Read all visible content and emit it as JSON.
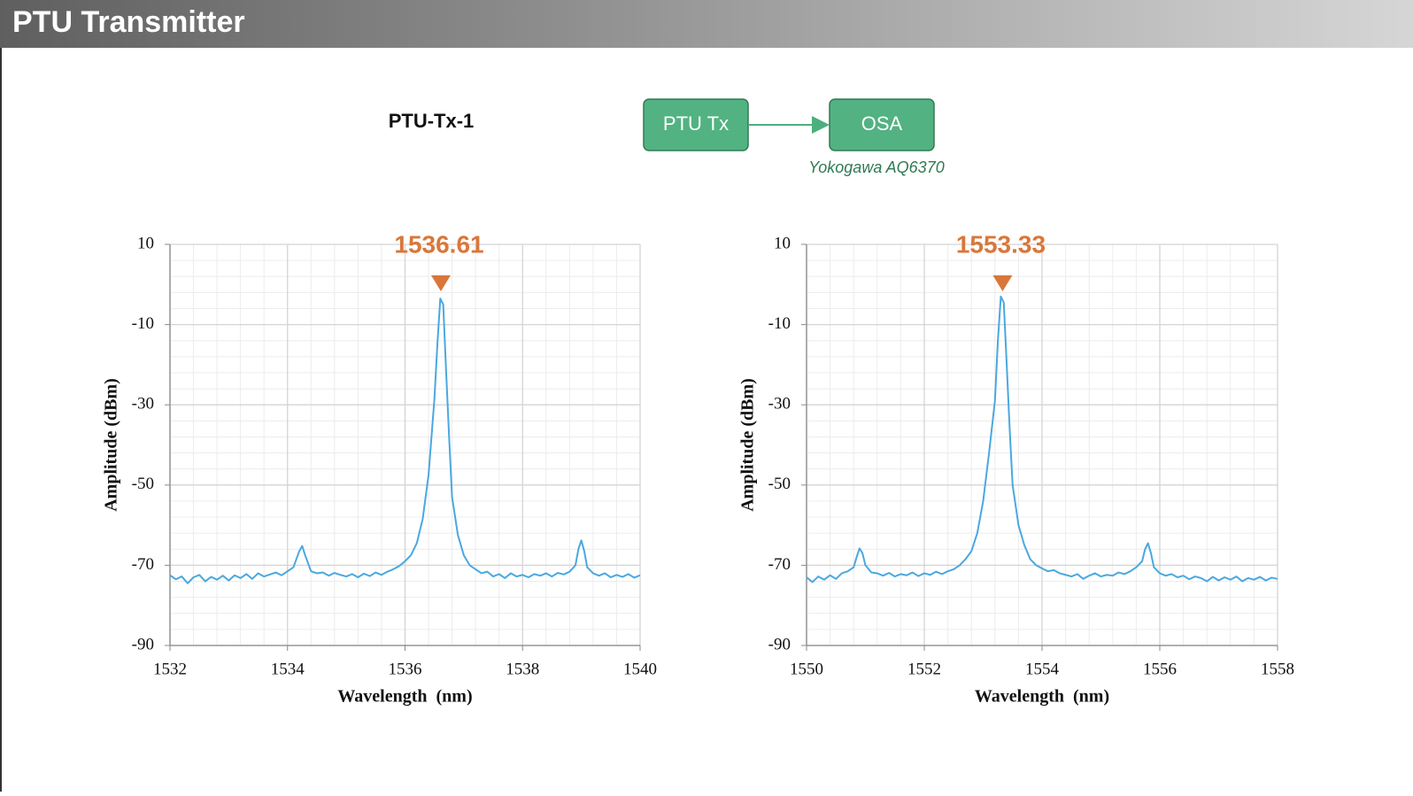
{
  "header": {
    "title": "PTU Transmitter"
  },
  "diagram": {
    "title": "PTU-Tx-1",
    "nodes": [
      {
        "label": "PTU Tx"
      },
      {
        "label": "OSA",
        "caption": "Yokogawa AQ6370"
      }
    ]
  },
  "chart_data": [
    {
      "type": "line",
      "xlabel": "Wavelength  (nm)",
      "ylabel": "Amplitude (dBm)",
      "color": "#4aa8e0",
      "peak_wavelength": 1536.61,
      "peak_color": "#d9773a",
      "grid": true,
      "minor_grid": true,
      "xlim": [
        1532,
        1540
      ],
      "xticks": [
        1532,
        1534,
        1536,
        1538,
        1540
      ],
      "ylim": [
        -90,
        10
      ],
      "yticks": [
        -90,
        -70,
        -50,
        -30,
        -10,
        10
      ],
      "x": [
        1532.0,
        1532.1,
        1532.2,
        1532.3,
        1532.4,
        1532.5,
        1532.6,
        1532.7,
        1532.8,
        1532.9,
        1533.0,
        1533.1,
        1533.2,
        1533.3,
        1533.4,
        1533.5,
        1533.6,
        1533.7,
        1533.8,
        1533.9,
        1534.0,
        1534.1,
        1534.2,
        1534.25,
        1534.3,
        1534.4,
        1534.5,
        1534.6,
        1534.7,
        1534.8,
        1534.9,
        1535.0,
        1535.1,
        1535.2,
        1535.3,
        1535.4,
        1535.5,
        1535.6,
        1535.7,
        1535.8,
        1535.9,
        1536.0,
        1536.1,
        1536.2,
        1536.3,
        1536.4,
        1536.5,
        1536.55,
        1536.6,
        1536.65,
        1536.7,
        1536.75,
        1536.8,
        1536.9,
        1537.0,
        1537.1,
        1537.2,
        1537.3,
        1537.4,
        1537.5,
        1537.6,
        1537.7,
        1537.8,
        1537.9,
        1538.0,
        1538.1,
        1538.2,
        1538.3,
        1538.4,
        1538.5,
        1538.6,
        1538.7,
        1538.8,
        1538.9,
        1538.95,
        1539.0,
        1539.05,
        1539.1,
        1539.2,
        1539.3,
        1539.4,
        1539.5,
        1539.6,
        1539.7,
        1539.8,
        1539.9,
        1540.0
      ],
      "values": [
        -72.5,
        -73.5,
        -72.8,
        -74.5,
        -73.0,
        -72.4,
        -74.0,
        -72.9,
        -73.6,
        -72.6,
        -73.8,
        -72.5,
        -73.2,
        -72.2,
        -73.4,
        -72.0,
        -72.8,
        -72.3,
        -71.8,
        -72.5,
        -71.5,
        -70.5,
        -66.5,
        -65.2,
        -67.5,
        -71.5,
        -72.0,
        -71.8,
        -72.6,
        -71.9,
        -72.4,
        -72.8,
        -72.2,
        -73.0,
        -72.1,
        -72.7,
        -71.8,
        -72.4,
        -71.6,
        -71.0,
        -70.2,
        -69.0,
        -67.5,
        -64.5,
        -58.5,
        -47.5,
        -28.5,
        -15.0,
        -3.5,
        -5.0,
        -22.0,
        -38.0,
        -53.0,
        -62.5,
        -67.5,
        -70.0,
        -71.0,
        -72.0,
        -71.6,
        -72.8,
        -72.2,
        -73.2,
        -72.0,
        -72.8,
        -72.4,
        -73.0,
        -72.2,
        -72.6,
        -72.0,
        -72.8,
        -71.9,
        -72.3,
        -71.6,
        -70.0,
        -66.0,
        -63.8,
        -66.5,
        -70.5,
        -72.0,
        -72.6,
        -72.0,
        -73.0,
        -72.4,
        -72.9,
        -72.2,
        -73.1,
        -72.5
      ]
    },
    {
      "type": "line",
      "xlabel": "Wavelength  (nm)",
      "ylabel": "Amplitude (dBm)",
      "color": "#4aa8e0",
      "peak_wavelength": 1553.33,
      "peak_color": "#d9773a",
      "grid": true,
      "minor_grid": true,
      "xlim": [
        1550,
        1558
      ],
      "xticks": [
        1550,
        1552,
        1554,
        1556,
        1558
      ],
      "ylim": [
        -90,
        10
      ],
      "yticks": [
        -90,
        -70,
        -50,
        -30,
        -10,
        10
      ],
      "x": [
        1550.0,
        1550.1,
        1550.2,
        1550.3,
        1550.4,
        1550.5,
        1550.6,
        1550.7,
        1550.8,
        1550.85,
        1550.9,
        1550.95,
        1551.0,
        1551.1,
        1551.2,
        1551.3,
        1551.4,
        1551.5,
        1551.6,
        1551.7,
        1551.8,
        1551.9,
        1552.0,
        1552.1,
        1552.2,
        1552.3,
        1552.4,
        1552.5,
        1552.6,
        1552.7,
        1552.8,
        1552.9,
        1553.0,
        1553.1,
        1553.2,
        1553.25,
        1553.3,
        1553.35,
        1553.4,
        1553.45,
        1553.5,
        1553.6,
        1553.7,
        1553.8,
        1553.9,
        1554.0,
        1554.1,
        1554.2,
        1554.3,
        1554.4,
        1554.5,
        1554.6,
        1554.7,
        1554.8,
        1554.9,
        1555.0,
        1555.1,
        1555.2,
        1555.3,
        1555.4,
        1555.5,
        1555.6,
        1555.7,
        1555.75,
        1555.8,
        1555.85,
        1555.9,
        1556.0,
        1556.1,
        1556.2,
        1556.3,
        1556.4,
        1556.5,
        1556.6,
        1556.7,
        1556.8,
        1556.9,
        1557.0,
        1557.1,
        1557.2,
        1557.3,
        1557.4,
        1557.5,
        1557.6,
        1557.7,
        1557.8,
        1557.9,
        1558.0
      ],
      "values": [
        -73.0,
        -74.2,
        -72.8,
        -73.6,
        -72.5,
        -73.4,
        -72.0,
        -71.5,
        -70.5,
        -68.0,
        -65.8,
        -67.0,
        -70.0,
        -71.8,
        -72.0,
        -72.6,
        -71.9,
        -72.8,
        -72.2,
        -72.5,
        -71.8,
        -72.7,
        -72.0,
        -72.4,
        -71.6,
        -72.2,
        -71.5,
        -71.0,
        -70.0,
        -68.5,
        -66.5,
        -62.0,
        -54.0,
        -42.0,
        -29.0,
        -14.0,
        -3.0,
        -4.5,
        -20.0,
        -36.0,
        -50.0,
        -60.0,
        -65.0,
        -68.5,
        -70.0,
        -70.8,
        -71.5,
        -71.2,
        -72.0,
        -72.4,
        -72.8,
        -72.2,
        -73.4,
        -72.6,
        -72.0,
        -72.8,
        -72.4,
        -72.6,
        -71.8,
        -72.2,
        -71.5,
        -70.5,
        -69.0,
        -66.0,
        -64.5,
        -67.0,
        -70.5,
        -72.0,
        -72.6,
        -72.2,
        -73.0,
        -72.6,
        -73.5,
        -72.8,
        -73.2,
        -74.0,
        -72.9,
        -73.8,
        -73.0,
        -73.6,
        -72.8,
        -74.0,
        -73.2,
        -73.6,
        -72.9,
        -73.8,
        -73.1,
        -73.4
      ]
    }
  ]
}
